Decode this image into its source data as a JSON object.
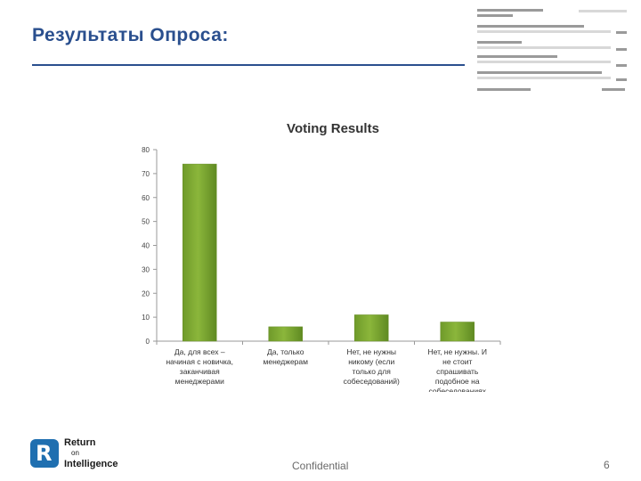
{
  "slide": {
    "title": "Результаты Опроса:",
    "footer_confidential": "Confidential",
    "page_number": "6",
    "logo": {
      "line1": "Return",
      "line2": "on",
      "line3": "Intelligence"
    }
  },
  "colors": {
    "title": "#2a4f8e",
    "bar": "#8bb63b",
    "logo": "#1f6fb0"
  },
  "chart_data": {
    "type": "bar",
    "title": "Voting Results",
    "categories": [
      "Да, для всех – начиная с новичка, заканчивая менеджерами",
      "Да, только менеджерам",
      "Нет, не нужны никому (если только для собеседований)",
      "Нет, не нужны. И не стоит спрашивать подобное на собеседованиях"
    ],
    "values": [
      74,
      6,
      11,
      8
    ],
    "ylim": [
      0,
      80
    ],
    "yticks": [
      "0",
      "10",
      "20",
      "30",
      "40",
      "50",
      "60",
      "70",
      "80"
    ],
    "xlabel": "",
    "ylabel": "",
    "grid": false,
    "legend": "none"
  }
}
